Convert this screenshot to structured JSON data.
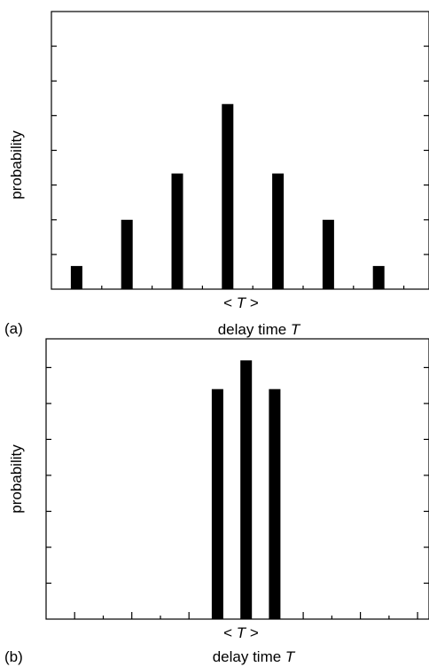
{
  "chart_data": [
    {
      "type": "bar",
      "panel_label": "(a)",
      "x": [
        -3,
        -2,
        -1,
        0,
        1,
        2,
        3
      ],
      "values": [
        1,
        3,
        5,
        8,
        5,
        3,
        1
      ],
      "ylim": [
        0,
        12
      ],
      "xlim": [
        -3.5,
        4.0
      ],
      "xlabel_prefix": "delay time ",
      "xlabel_var": "T",
      "xtick_label": {
        "left": "< ",
        "var": "T",
        "right": " >"
      },
      "ylabel": "probability",
      "grid": false
    },
    {
      "type": "bar",
      "panel_label": "(b)",
      "x": [
        -0.5,
        0,
        0.5
      ],
      "values": [
        6.4,
        7.2,
        6.4
      ],
      "ylim": [
        0,
        7.8
      ],
      "xlim": [
        -3.5,
        3.2
      ],
      "xlabel_prefix": "delay time ",
      "xlabel_var": "T",
      "xtick_label": {
        "left": "< ",
        "var": "T",
        "right": " >"
      },
      "ylabel": "probability",
      "grid": false
    }
  ]
}
